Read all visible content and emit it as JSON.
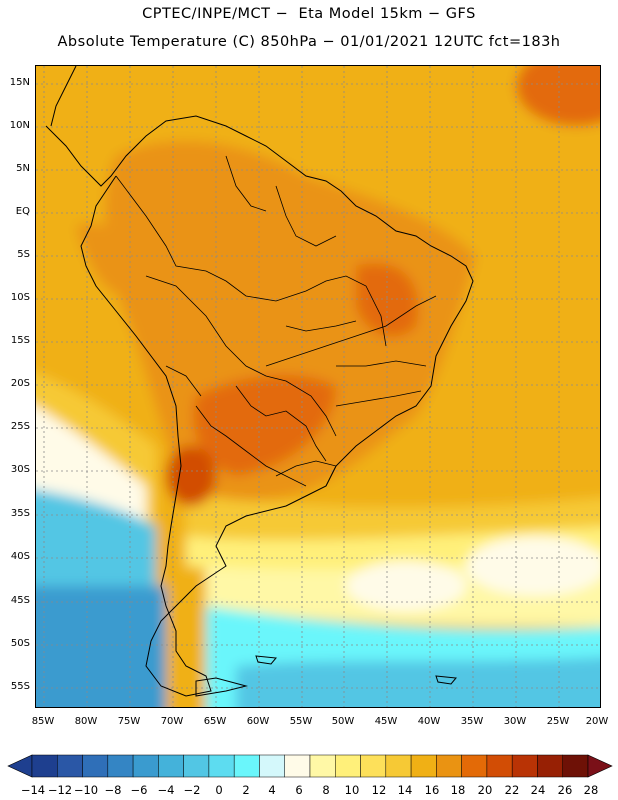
{
  "title_line1": "CPTEC/INPE/MCT −  Eta Model 15km − GFS",
  "title_line2": "Absolute Temperature (C) 850hPa − 01/01/2021 12UTC fct=183h",
  "lat_labels": [
    "15N",
    "10N",
    "5N",
    "EQ",
    "5S",
    "10S",
    "15S",
    "20S",
    "25S",
    "30S",
    "35S",
    "40S",
    "45S",
    "50S",
    "55S"
  ],
  "lon_labels": [
    "85W",
    "80W",
    "75W",
    "70W",
    "65W",
    "60W",
    "55W",
    "50W",
    "45W",
    "40W",
    "35W",
    "30W",
    "25W",
    "20W"
  ],
  "colorbar": {
    "labels": [
      "-14",
      "-12",
      "-10",
      "-8",
      "-6",
      "-4",
      "-2",
      "0",
      "2",
      "4",
      "6",
      "8",
      "10",
      "12",
      "14",
      "16",
      "18",
      "20",
      "22",
      "24",
      "26",
      "28"
    ],
    "colors": [
      "#1e3f8f",
      "#2a57a6",
      "#2f6fb8",
      "#3485c4",
      "#3a9bcf",
      "#44b2da",
      "#52c6e4",
      "#5ddcf0",
      "#6af6fb",
      "#d4f8fb",
      "#fffbe8",
      "#fff8a6",
      "#fff07a",
      "#fde05a",
      "#f6c935",
      "#f0b015",
      "#ea9312",
      "#e36a07",
      "#d24d05",
      "#b93305",
      "#972004",
      "#6e1106"
    ],
    "min_arrow_color": "#1e3f8f",
    "max_arrow_color": "#7a1018"
  }
}
